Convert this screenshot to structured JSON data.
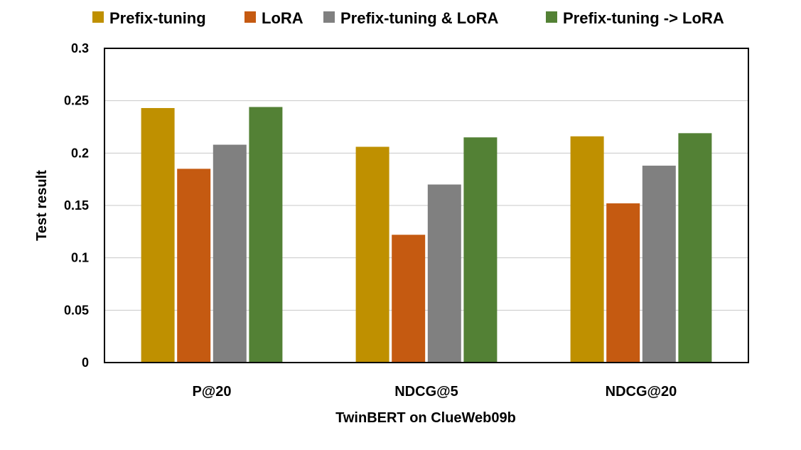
{
  "chart_data": {
    "type": "bar",
    "xlabel": "TwinBERT on ClueWeb09b",
    "ylabel": "Test result",
    "ylim": [
      0,
      0.3
    ],
    "yticks": [
      0,
      0.05,
      0.1,
      0.15,
      0.2,
      0.25,
      0.3
    ],
    "ytick_labels": [
      "0",
      "0.05",
      "0.1",
      "0.15",
      "0.2",
      "0.25",
      "0.3"
    ],
    "grid": true,
    "legend_position": "top",
    "categories": [
      "P@20",
      "NDCG@5",
      "NDCG@20"
    ],
    "series": [
      {
        "name": "Prefix-tuning",
        "color": "#BF9000",
        "values": [
          0.243,
          0.206,
          0.216
        ]
      },
      {
        "name": "LoRA",
        "color": "#C55A11",
        "values": [
          0.185,
          0.122,
          0.152
        ]
      },
      {
        "name": "Prefix-tuning & LoRA",
        "color": "#808080",
        "values": [
          0.208,
          0.17,
          0.188
        ]
      },
      {
        "name": "Prefix-tuning -> LoRA",
        "color": "#538135",
        "values": [
          0.244,
          0.215,
          0.219
        ]
      }
    ]
  }
}
